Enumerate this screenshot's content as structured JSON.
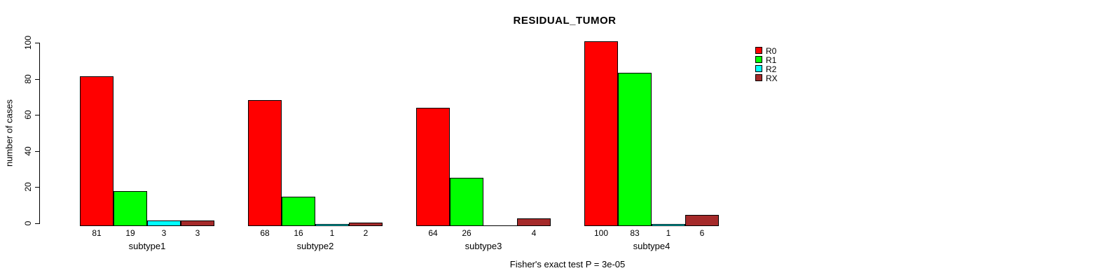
{
  "chart_data": {
    "type": "bar",
    "title": "RESIDUAL_TUMOR",
    "ylabel": "number of cases",
    "xlabel": "",
    "ylim": [
      0,
      100
    ],
    "yticks": [
      0,
      20,
      40,
      60,
      80,
      100
    ],
    "categories": [
      "subtype1",
      "subtype2",
      "subtype3",
      "subtype4"
    ],
    "series": [
      {
        "name": "R0",
        "color": "#FF0000",
        "values": [
          81,
          68,
          64,
          100
        ]
      },
      {
        "name": "R1",
        "color": "#00FF00",
        "values": [
          19,
          16,
          26,
          83
        ]
      },
      {
        "name": "R2",
        "color": "#00FFFF",
        "values": [
          3,
          1,
          0,
          1
        ]
      },
      {
        "name": "RX",
        "color": "#A52A2A",
        "values": [
          3,
          2,
          4,
          6
        ]
      }
    ],
    "bar_value_labels_shown": true,
    "zero_value_labels_hidden": true,
    "legend_position": "top-right",
    "legend_entries": [
      "R0",
      "R1",
      "R2",
      "RX"
    ],
    "grid": false,
    "footnote": "Fisher's exact test P = 3e-05"
  }
}
